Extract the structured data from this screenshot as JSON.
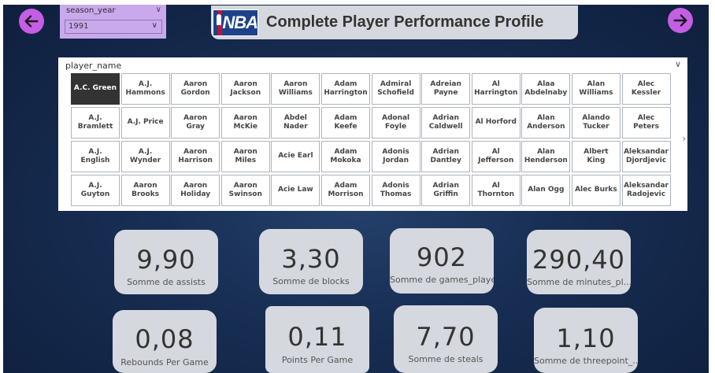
{
  "nav": {
    "back_icon": "arrow-left-icon",
    "next_icon": "arrow-right-icon",
    "button_color": "#c55ee4"
  },
  "season_slicer": {
    "label": "season_year",
    "selected": "1991"
  },
  "title": {
    "logo_text": "NBA",
    "text": "Complete Player Performance Profile"
  },
  "player_slicer": {
    "label": "player_name",
    "selected": "A.C. Green",
    "tiles": [
      "A.C. Green",
      "A.J. Hammons",
      "Aaron Gordon",
      "Aaron Jackson",
      "Aaron Williams",
      "Adam Harrington",
      "Admiral Schofield",
      "Adreian Payne",
      "Al Harrington",
      "Alaa Abdelnaby",
      "Alan Williams",
      "Alec Kessler",
      "A.J. Bramlett",
      "A.J. Price",
      "Aaron Gray",
      "Aaron McKie",
      "Abdel Nader",
      "Adam Keefe",
      "Adonal Foyle",
      "Adrian Caldwell",
      "Al Horford",
      "Alan Anderson",
      "Alando Tucker",
      "Alec Peters",
      "A.J. English",
      "A.J. Wynder",
      "Aaron Harrison",
      "Aaron Miles",
      "Acie Earl",
      "Adam Mokoka",
      "Adonis Jordan",
      "Adrian Dantley",
      "Al Jefferson",
      "Alan Henderson",
      "Albert King",
      "Aleksandar Djordjevic",
      "A.J. Guyton",
      "Aaron Brooks",
      "Aaron Holiday",
      "Aaron Swinson",
      "Acie Law",
      "Adam Morrison",
      "Adonis Thomas",
      "Adrian Griffin",
      "Al Thornton",
      "Alan Ogg",
      "Alec Burks",
      "Aleksandar Radojevic"
    ]
  },
  "cards": [
    {
      "value": "9,90",
      "caption": "Somme de assists"
    },
    {
      "value": "3,30",
      "caption": "Somme de blocks"
    },
    {
      "value": "902",
      "caption": "Somme de games_played"
    },
    {
      "value": "290,40",
      "caption": "Somme de minutes_pl..."
    },
    {
      "value": "0,08",
      "caption": "Rebounds Per Game"
    },
    {
      "value": "0,11",
      "caption": "Points Per Game"
    },
    {
      "value": "7,70",
      "caption": "Somme de steals"
    },
    {
      "value": "1,10",
      "caption": "Somme de threepoint_..."
    }
  ]
}
